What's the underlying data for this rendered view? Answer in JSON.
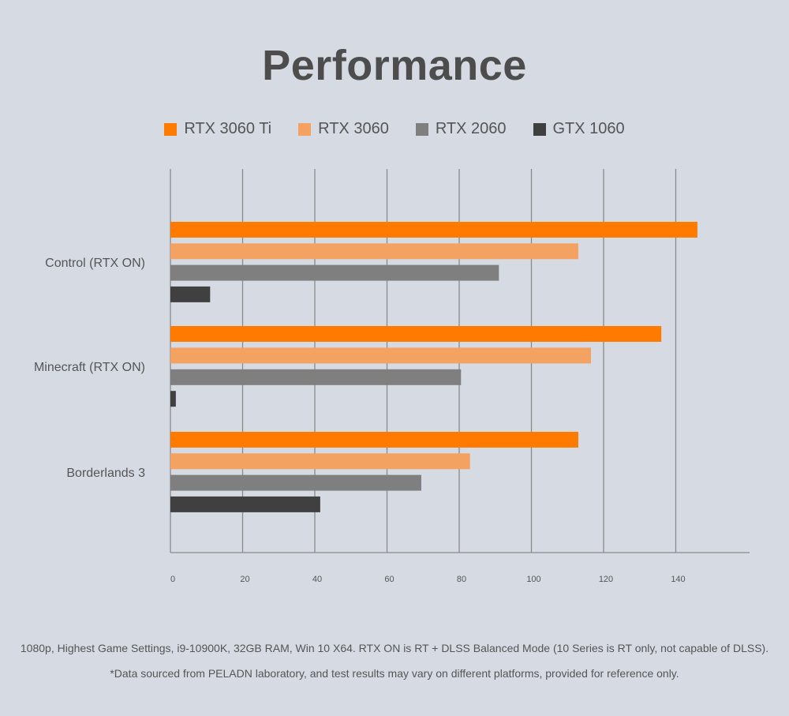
{
  "chart_data": {
    "type": "bar",
    "orientation": "horizontal",
    "title": "Performance",
    "categories": [
      "Control (RTX ON)",
      "Minecraft (RTX ON)",
      "Borderlands 3"
    ],
    "series": [
      {
        "name": "RTX 3060 Ti",
        "color": "#ff7a00",
        "values": [
          146,
          136,
          113
        ]
      },
      {
        "name": "RTX 3060",
        "color": "#f4a261",
        "values": [
          113,
          116.5,
          83
        ]
      },
      {
        "name": "RTX 2060",
        "color": "#7f7f7f",
        "values": [
          91,
          80.5,
          69.5
        ]
      },
      {
        "name": "GTX 1060",
        "color": "#404040",
        "values": [
          11,
          1.5,
          41.5
        ]
      }
    ],
    "xticks": [
      0,
      20,
      40,
      60,
      80,
      100,
      120,
      140
    ],
    "xlim": [
      0,
      160
    ],
    "grid": true,
    "legend": "top-center"
  },
  "footnotes": {
    "line1": "1080p, Highest Game Settings, i9-10900K, 32GB RAM, Win 10 X64. RTX ON is RT + DLSS Balanced Mode (10 Series is RT only, not capable of DLSS).",
    "line2": "*Data sourced from PELADN laboratory, and test results may vary on different platforms, provided for reference only."
  }
}
